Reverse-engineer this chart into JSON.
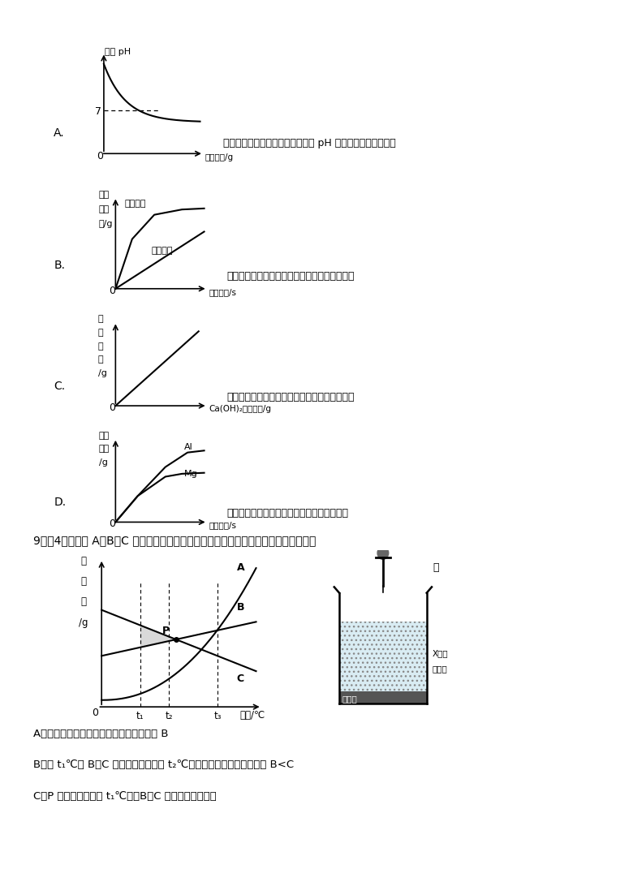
{
  "bg_color": "#ffffff",
  "font_color": "#000000",
  "panel_A_label": "A.",
  "panel_A_ylabel": "溶液 pH",
  "panel_A_xlabel": "水的质量/g",
  "panel_A_note": "向氢氧化钠溶液中不断加水，溶液 pH 与加入水的质量的关系",
  "panel_A_dashed_label": "7",
  "panel_B_label": "B.",
  "panel_B_xlabel": "反应时间/s",
  "panel_B_note": "用等质量、等质量分数的过氧化氢溶液制取氧气",
  "panel_B_line1": "有催化剂",
  "panel_B_line2": "无催化剂",
  "panel_C_label": "C.",
  "panel_C_xlabel": "Ca(OH)₂溶液质量/g",
  "panel_C_note": "向一定量的稀盐酸中，加入足量的氢氧化钙溶液",
  "panel_D_label": "D.",
  "panel_D_xlabel": "反应时间/s",
  "panel_D_note": "向等质量等浓度的稀硫酸中加入足量的镁、铝",
  "panel_D_Al": "Al",
  "panel_D_Mg": "Mg",
  "q9_title": "9．（4分）已知 A、B、C 三种物质的溶解度曲线如图所示，下列说法错误的是（　　）",
  "q9_optA": "A．在阴影区域部分，处于不饱和状态的是 B",
  "q9_optB": "B．将 t₁℃时 B、C 的饱和溶液升温至 t₂℃，所得溶液溶质的质量分数 B<C",
  "q9_optC": "C．P 点表示的含义为 t₁℃时，B、C 物质的溶解度相等",
  "beaker_water_label": "水",
  "beaker_CaO_label": "氧化钙",
  "beaker_X_label": "X的饱\n和溶液"
}
